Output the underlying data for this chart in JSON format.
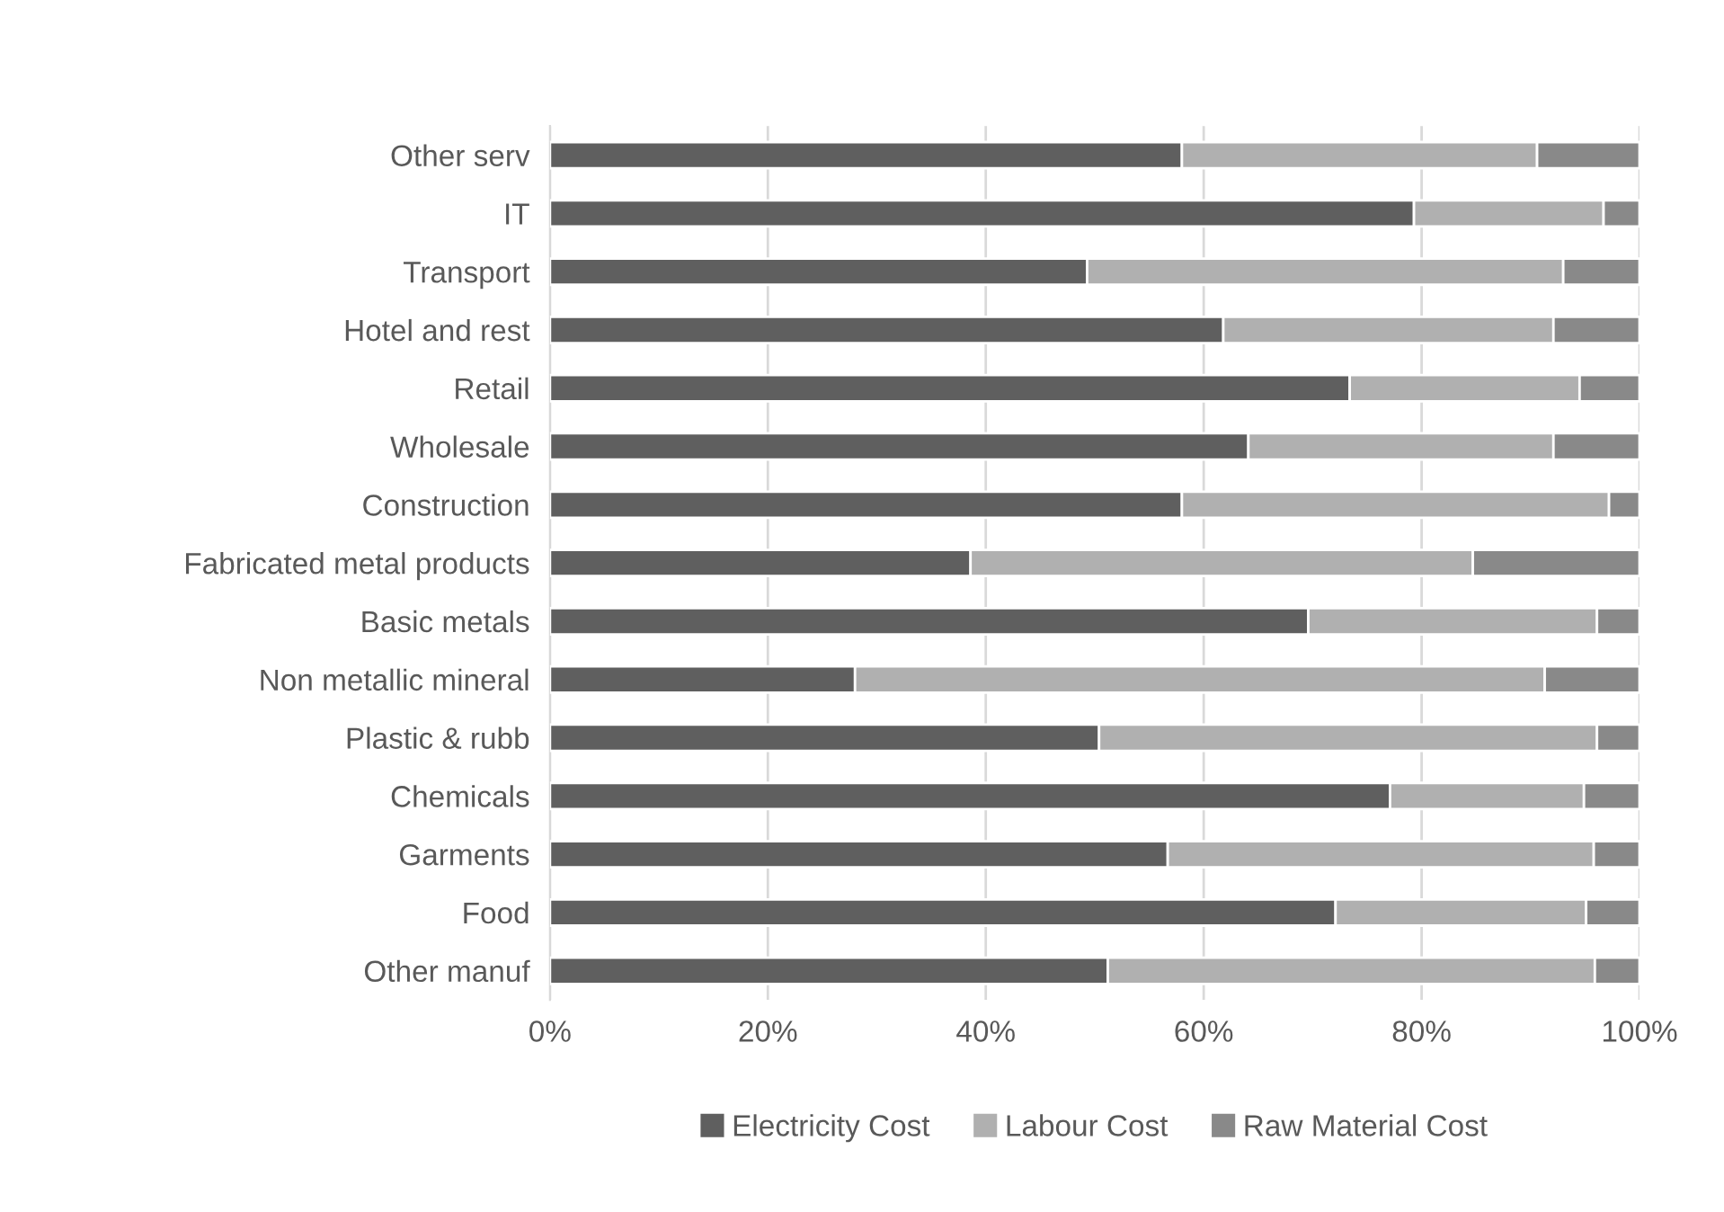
{
  "chart_data": {
    "type": "bar",
    "orientation": "horizontal",
    "stacked": true,
    "categories": [
      "Other serv",
      "IT",
      "Transport",
      "Hotel and rest",
      "Retail",
      "Wholesale",
      "Construction",
      "Fabricated metal products",
      "Basic metals",
      "Non metallic mineral",
      "Plastic & rubb",
      "Chemicals",
      "Garments",
      "Food",
      "Other manuf"
    ],
    "series": [
      {
        "name": "Electricity Cost",
        "color": "#5f5f5f",
        "values": [
          58.0,
          79.3,
          49.3,
          61.8,
          73.4,
          64.1,
          58.0,
          38.6,
          69.6,
          28.0,
          50.4,
          77.1,
          56.7,
          72.1,
          51.2
        ]
      },
      {
        "name": "Labour Cost",
        "color": "#b0b0b0",
        "values": [
          32.6,
          17.4,
          43.7,
          30.3,
          21.1,
          28.0,
          39.2,
          46.1,
          26.5,
          63.3,
          45.7,
          17.8,
          39.1,
          23.0,
          44.7
        ]
      },
      {
        "name": "Raw Material Cost",
        "color": "#898989",
        "values": [
          9.4,
          3.3,
          7.0,
          7.9,
          5.5,
          7.9,
          2.8,
          15.3,
          3.9,
          8.7,
          3.9,
          5.1,
          4.2,
          4.9,
          4.1
        ]
      }
    ],
    "xlim": [
      0,
      100
    ],
    "xticks": [
      {
        "value": 0,
        "label": "0%"
      },
      {
        "value": 20,
        "label": "20%"
      },
      {
        "value": 40,
        "label": "40%"
      },
      {
        "value": 60,
        "label": "60%"
      },
      {
        "value": 80,
        "label": "80%"
      },
      {
        "value": 100,
        "label": "100%"
      }
    ],
    "grid": "x",
    "legend": "bottom"
  }
}
